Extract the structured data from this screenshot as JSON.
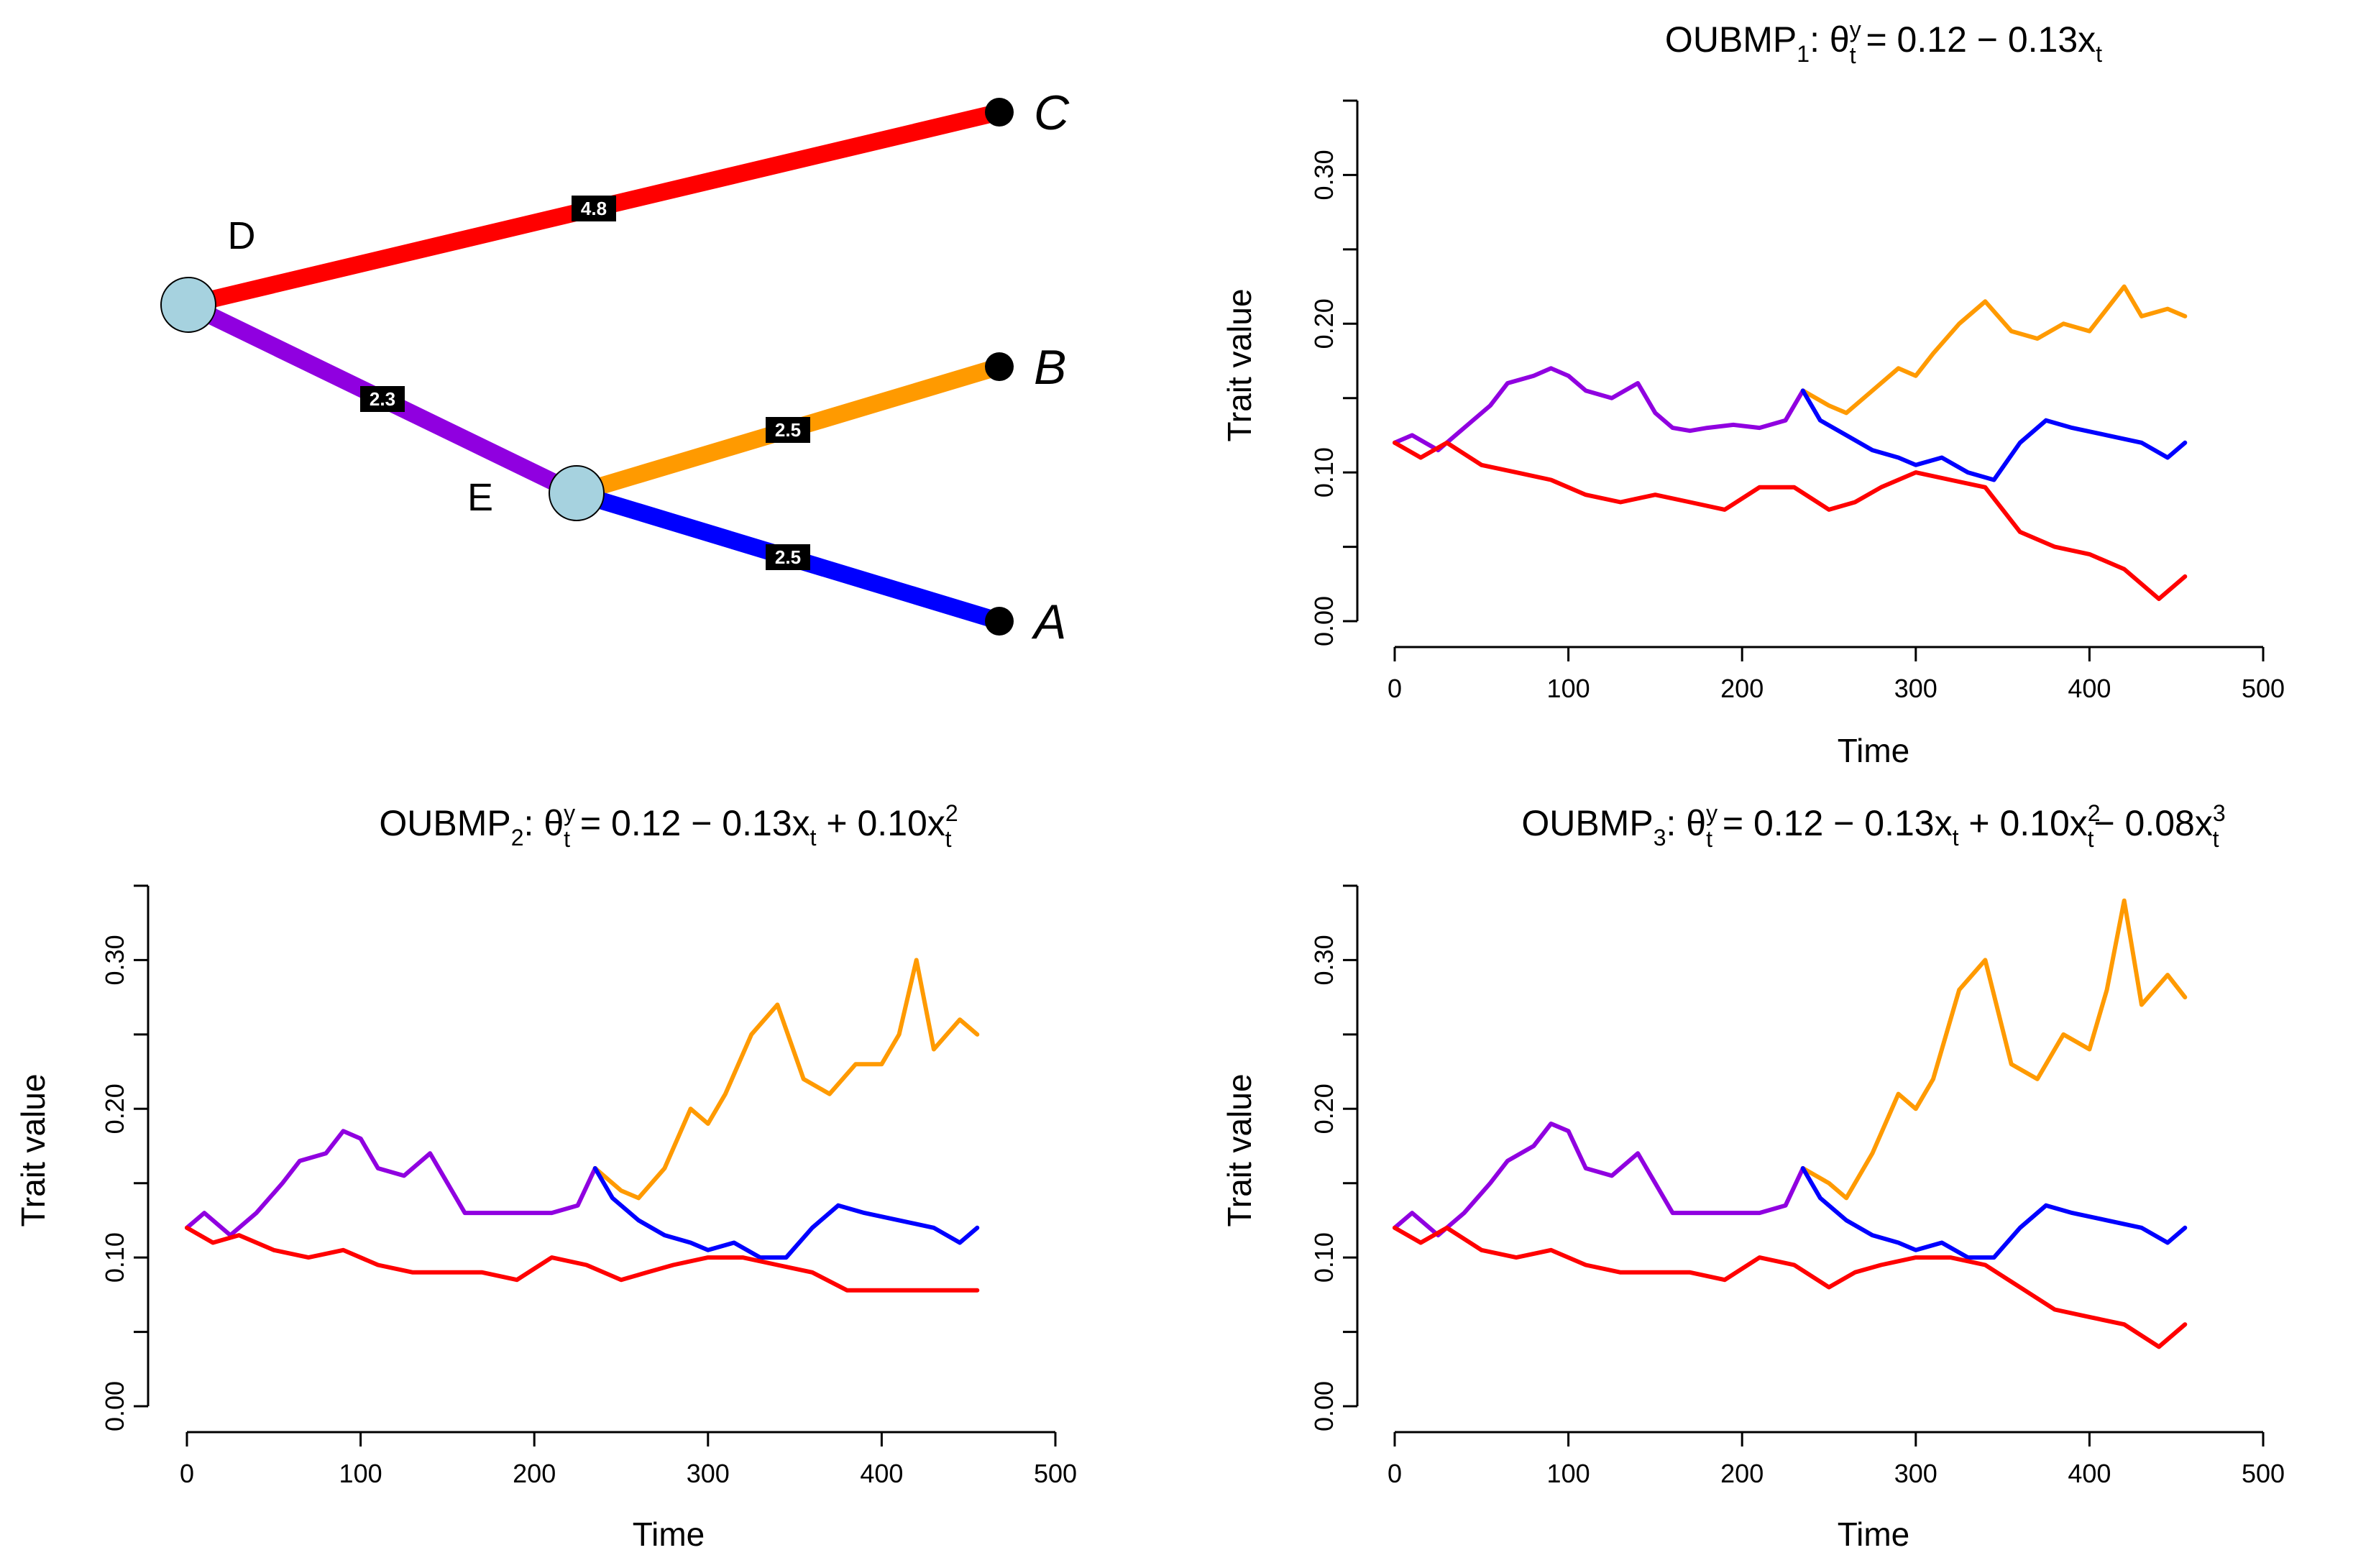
{
  "tree": {
    "edges": [
      {
        "from": "D",
        "to": "C",
        "color": "#ff0000",
        "length_label": "4.8"
      },
      {
        "from": "D",
        "to": "E",
        "color": "#9000e0",
        "length_label": "2.3"
      },
      {
        "from": "E",
        "to": "B",
        "color": "#ff9a00",
        "length_label": "2.5"
      },
      {
        "from": "E",
        "to": "A",
        "color": "#0000ff",
        "length_label": "2.5"
      }
    ],
    "internal_nodes": [
      {
        "id": "D",
        "label": "D",
        "color": "#a6d2df"
      },
      {
        "id": "E",
        "label": "E",
        "color": "#a6d2df"
      }
    ],
    "tips": [
      {
        "id": "C",
        "label": "C"
      },
      {
        "id": "B",
        "label": "B"
      },
      {
        "id": "A",
        "label": "A"
      }
    ]
  },
  "chart_data": [
    {
      "type": "line",
      "title_parts": {
        "prefix": "OUBMP",
        "index": "1",
        "sep": ": ",
        "theta": "θ",
        "sup": "y",
        "sub": "t",
        "formula": " = 0.12 − 0.13x",
        "formula_sub": "t"
      },
      "xlabel": "Time",
      "ylabel": "Trait value",
      "xlim": [
        0,
        500
      ],
      "ylim": [
        0,
        0.35
      ],
      "xticks": [
        "0",
        "100",
        "200",
        "300",
        "400",
        "500"
      ],
      "yticks": [
        "0.00",
        "0.10",
        "0.20",
        "0.30"
      ],
      "series": [
        {
          "name": "D→E (purple)",
          "color": "#9000e0",
          "x": [
            0,
            10,
            25,
            40,
            55,
            65,
            80,
            90,
            100,
            110,
            125,
            140,
            150,
            160,
            170,
            180,
            195,
            210,
            225,
            235
          ],
          "y": [
            0.12,
            0.125,
            0.115,
            0.13,
            0.145,
            0.16,
            0.165,
            0.17,
            0.165,
            0.155,
            0.15,
            0.16,
            0.14,
            0.13,
            0.128,
            0.13,
            0.132,
            0.13,
            0.135,
            0.155
          ]
        },
        {
          "name": "E→B (orange)",
          "color": "#ff9a00",
          "x": [
            235,
            250,
            260,
            275,
            290,
            300,
            310,
            325,
            340,
            355,
            370,
            385,
            400,
            410,
            420,
            430,
            445,
            455
          ],
          "y": [
            0.155,
            0.145,
            0.14,
            0.155,
            0.17,
            0.165,
            0.18,
            0.2,
            0.215,
            0.195,
            0.19,
            0.2,
            0.195,
            0.21,
            0.225,
            0.205,
            0.21,
            0.205
          ]
        },
        {
          "name": "E→A (blue)",
          "color": "#0000ff",
          "x": [
            235,
            245,
            260,
            275,
            290,
            300,
            315,
            330,
            345,
            360,
            375,
            390,
            410,
            430,
            445,
            455
          ],
          "y": [
            0.155,
            0.135,
            0.125,
            0.115,
            0.11,
            0.105,
            0.11,
            0.1,
            0.095,
            0.12,
            0.135,
            0.13,
            0.125,
            0.12,
            0.11,
            0.12
          ]
        },
        {
          "name": "D→C (red)",
          "color": "#ff0000",
          "x": [
            0,
            15,
            30,
            50,
            70,
            90,
            110,
            130,
            150,
            170,
            190,
            210,
            230,
            250,
            265,
            280,
            300,
            320,
            340,
            360,
            380,
            400,
            420,
            440,
            455
          ],
          "y": [
            0.12,
            0.11,
            0.12,
            0.105,
            0.1,
            0.095,
            0.085,
            0.08,
            0.085,
            0.08,
            0.075,
            0.09,
            0.09,
            0.075,
            0.08,
            0.09,
            0.1,
            0.095,
            0.09,
            0.06,
            0.05,
            0.045,
            0.035,
            0.015,
            0.03
          ]
        }
      ]
    },
    {
      "type": "line",
      "title_parts": {
        "prefix": "OUBMP",
        "index": "2",
        "sep": ": ",
        "theta": "θ",
        "sup": "y",
        "sub": "t",
        "formula": " = 0.12 − 0.13x",
        "formula_sub": "t",
        "term2": " + 0.10x",
        "term2_sup": "2",
        "term2_sub": "t"
      },
      "xlabel": "Time",
      "ylabel": "Trait value",
      "xlim": [
        0,
        500
      ],
      "ylim": [
        0,
        0.35
      ],
      "xticks": [
        "0",
        "100",
        "200",
        "300",
        "400",
        "500"
      ],
      "yticks": [
        "0.00",
        "0.10",
        "0.20",
        "0.30"
      ],
      "series": [
        {
          "name": "D→E (purple)",
          "color": "#9000e0",
          "x": [
            0,
            10,
            25,
            40,
            55,
            65,
            80,
            90,
            100,
            110,
            125,
            140,
            150,
            160,
            170,
            180,
            195,
            210,
            225,
            235
          ],
          "y": [
            0.12,
            0.13,
            0.115,
            0.13,
            0.15,
            0.165,
            0.17,
            0.185,
            0.18,
            0.16,
            0.155,
            0.17,
            0.15,
            0.13,
            0.13,
            0.13,
            0.13,
            0.13,
            0.135,
            0.16
          ]
        },
        {
          "name": "E→B (orange)",
          "color": "#ff9a00",
          "x": [
            235,
            250,
            260,
            275,
            290,
            300,
            310,
            325,
            340,
            355,
            370,
            385,
            400,
            410,
            420,
            430,
            445,
            455
          ],
          "y": [
            0.16,
            0.145,
            0.14,
            0.16,
            0.2,
            0.19,
            0.21,
            0.25,
            0.27,
            0.22,
            0.21,
            0.23,
            0.23,
            0.25,
            0.3,
            0.24,
            0.26,
            0.25
          ]
        },
        {
          "name": "E→A (blue)",
          "color": "#0000ff",
          "x": [
            235,
            245,
            260,
            275,
            290,
            300,
            315,
            330,
            345,
            360,
            375,
            390,
            410,
            430,
            445,
            455
          ],
          "y": [
            0.16,
            0.14,
            0.125,
            0.115,
            0.11,
            0.105,
            0.11,
            0.1,
            0.1,
            0.12,
            0.135,
            0.13,
            0.125,
            0.12,
            0.11,
            0.12
          ]
        },
        {
          "name": "D→C (red)",
          "color": "#ff0000",
          "x": [
            0,
            15,
            30,
            50,
            70,
            90,
            110,
            130,
            150,
            170,
            190,
            210,
            230,
            250,
            265,
            280,
            300,
            320,
            340,
            360,
            380,
            400,
            420,
            440,
            455
          ],
          "y": [
            0.12,
            0.11,
            0.115,
            0.105,
            0.1,
            0.105,
            0.095,
            0.09,
            0.09,
            0.09,
            0.085,
            0.1,
            0.095,
            0.085,
            0.09,
            0.095,
            0.1,
            0.1,
            0.095,
            0.09,
            0.078,
            0.078,
            0.078,
            0.078,
            0.078
          ]
        }
      ]
    },
    {
      "type": "line",
      "title_parts": {
        "prefix": "OUBMP",
        "index": "3",
        "sep": ": ",
        "theta": "θ",
        "sup": "y",
        "sub": "t",
        "formula": " = 0.12 − 0.13x",
        "formula_sub": "t",
        "term2": " + 0.10x",
        "term2_sup": "2",
        "term2_sub": "t",
        "term3": "− 0.08x",
        "term3_sup": "3",
        "term3_sub": "t"
      },
      "xlabel": "Time",
      "ylabel": "Trait value",
      "xlim": [
        0,
        500
      ],
      "ylim": [
        0,
        0.35
      ],
      "xticks": [
        "0",
        "100",
        "200",
        "300",
        "400",
        "500"
      ],
      "yticks": [
        "0.00",
        "0.10",
        "0.20",
        "0.30"
      ],
      "series": [
        {
          "name": "D→E (purple)",
          "color": "#9000e0",
          "x": [
            0,
            10,
            25,
            40,
            55,
            65,
            80,
            90,
            100,
            110,
            125,
            140,
            150,
            160,
            170,
            180,
            195,
            210,
            225,
            235
          ],
          "y": [
            0.12,
            0.13,
            0.115,
            0.13,
            0.15,
            0.165,
            0.175,
            0.19,
            0.185,
            0.16,
            0.155,
            0.17,
            0.15,
            0.13,
            0.13,
            0.13,
            0.13,
            0.13,
            0.135,
            0.16
          ]
        },
        {
          "name": "E→B (orange)",
          "color": "#ff9a00",
          "x": [
            235,
            250,
            260,
            275,
            290,
            300,
            310,
            325,
            340,
            355,
            370,
            385,
            400,
            410,
            420,
            430,
            445,
            455
          ],
          "y": [
            0.16,
            0.15,
            0.14,
            0.17,
            0.21,
            0.2,
            0.22,
            0.28,
            0.3,
            0.23,
            0.22,
            0.25,
            0.24,
            0.28,
            0.34,
            0.27,
            0.29,
            0.275
          ]
        },
        {
          "name": "E→A (blue)",
          "color": "#0000ff",
          "x": [
            235,
            245,
            260,
            275,
            290,
            300,
            315,
            330,
            345,
            360,
            375,
            390,
            410,
            430,
            445,
            455
          ],
          "y": [
            0.16,
            0.14,
            0.125,
            0.115,
            0.11,
            0.105,
            0.11,
            0.1,
            0.1,
            0.12,
            0.135,
            0.13,
            0.125,
            0.12,
            0.11,
            0.12
          ]
        },
        {
          "name": "D→C (red)",
          "color": "#ff0000",
          "x": [
            0,
            15,
            30,
            50,
            70,
            90,
            110,
            130,
            150,
            170,
            190,
            210,
            230,
            250,
            265,
            280,
            300,
            320,
            340,
            360,
            380,
            400,
            420,
            440,
            455
          ],
          "y": [
            0.12,
            0.11,
            0.12,
            0.105,
            0.1,
            0.105,
            0.095,
            0.09,
            0.09,
            0.09,
            0.085,
            0.1,
            0.095,
            0.08,
            0.09,
            0.095,
            0.1,
            0.1,
            0.095,
            0.08,
            0.065,
            0.06,
            0.055,
            0.04,
            0.055
          ]
        }
      ]
    }
  ]
}
